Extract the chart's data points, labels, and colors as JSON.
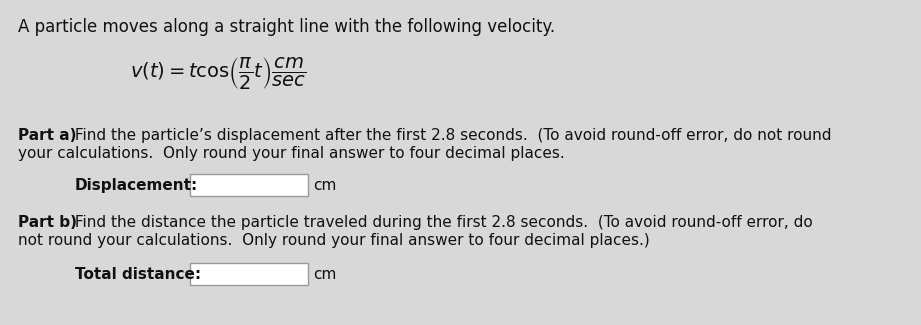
{
  "background_color": "#d8d8d8",
  "inner_bg": "#e8e8e8",
  "text_color": "#111111",
  "title": "A particle moves along a straight line with the following velocity.",
  "formula": "$v(t) = t\\cos\\!\\left(\\dfrac{\\pi}{2}t\\right)\\dfrac{cm}{sec}$",
  "part_a_bold": "Part a)",
  "part_a_rest": " Find the particle’s displacement after the first 2.8 seconds.  (To avoid round-off error, do not round",
  "part_a_line2": "your calculations.  Only round your final answer to four decimal places.",
  "disp_label": "Displacement:",
  "cm_a": "cm",
  "part_b_bold": "Part b)",
  "part_b_rest": " Find the distance the particle traveled during the first 2.8 seconds.  (To avoid round-off error, do",
  "part_b_line2": "not round your calculations.  Only round your final answer to four decimal places.)",
  "total_label": "Total distance:",
  "cm_b": "cm",
  "font_title": 12,
  "font_body": 11,
  "font_formula": 14,
  "font_label": 11
}
